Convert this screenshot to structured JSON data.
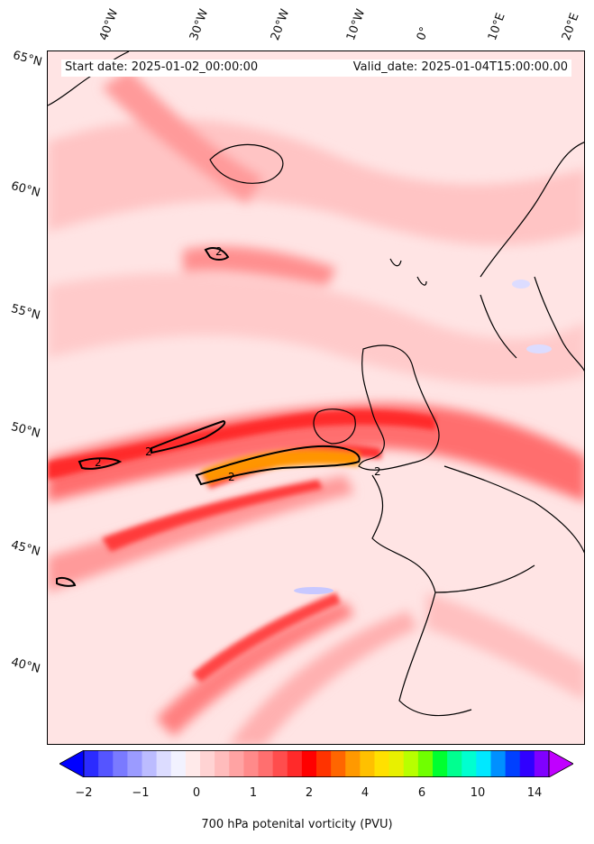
{
  "header": {
    "start_date": "Start date: 2025-01-02_00:00:00",
    "valid_date": "Valid_date: 2025-01-04T15:00:00.00"
  },
  "axes": {
    "longitude_labels": [
      "40°W",
      "30°W",
      "20°W",
      "10°W",
      "0°",
      "10°E",
      "20°E"
    ],
    "latitude_labels": [
      "65°N",
      "60°N",
      "55°N",
      "50°N",
      "45°N",
      "40°N"
    ]
  },
  "contour_label": "2",
  "colorbar": {
    "label": "700 hPa potenital vorticity (PVU)",
    "ticks": [
      "−2",
      "−1",
      "0",
      "1",
      "2",
      "4",
      "6",
      "10",
      "14"
    ],
    "colors": [
      "#0000ff",
      "#2b2bff",
      "#5555ff",
      "#7a7aff",
      "#9b9bff",
      "#bcbcff",
      "#dcdcff",
      "#f2f2ff",
      "#ffeaea",
      "#ffd3d3",
      "#ffbcbc",
      "#ffa3a3",
      "#ff8a8a",
      "#ff6f6f",
      "#ff4d4d",
      "#ff2a2a",
      "#ff0000",
      "#ff3300",
      "#ff6600",
      "#ff9900",
      "#ffc000",
      "#ffe000",
      "#e8f000",
      "#b8ff00",
      "#70ff00",
      "#00ff30",
      "#00ff90",
      "#00ffd0",
      "#00e8ff",
      "#0090ff",
      "#0040ff",
      "#3000ff",
      "#8000ff",
      "#c000ff"
    ],
    "extend": "both"
  }
}
